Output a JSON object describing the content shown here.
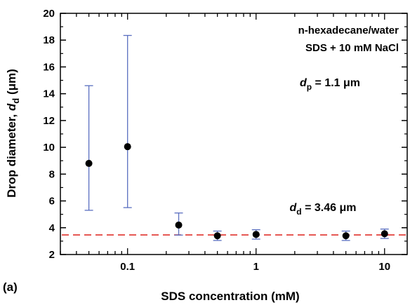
{
  "chart_data": {
    "type": "scatter",
    "panel_label": "(a)",
    "xlabel": "SDS concentration (mM)",
    "ylabel_parts": {
      "main": "Drop diameter, ",
      "var": "d",
      "sub": "d",
      "unit": " (μm)"
    },
    "x_scale": "log",
    "xlim": [
      0.03,
      15
    ],
    "ylim": [
      2,
      20
    ],
    "x_ticks": [
      0.1,
      1,
      10
    ],
    "x_tick_labels": [
      "0.1",
      "1",
      "10"
    ],
    "y_ticks": [
      2,
      4,
      6,
      8,
      10,
      12,
      14,
      16,
      18,
      20
    ],
    "y_tick_labels": [
      "2",
      "4",
      "6",
      "8",
      "10",
      "12",
      "14",
      "16",
      "18",
      "20"
    ],
    "grid": false,
    "points": [
      {
        "x": 0.05,
        "y": 8.8,
        "y_low": 5.3,
        "y_high": 14.6
      },
      {
        "x": 0.1,
        "y": 10.05,
        "y_low": 5.5,
        "y_high": 18.35
      },
      {
        "x": 0.25,
        "y": 4.2,
        "y_low": 3.45,
        "y_high": 5.1
      },
      {
        "x": 0.5,
        "y": 3.4,
        "y_low": 3.05,
        "y_high": 3.75
      },
      {
        "x": 1,
        "y": 3.5,
        "y_low": 3.15,
        "y_high": 3.85
      },
      {
        "x": 5,
        "y": 3.4,
        "y_low": 3.05,
        "y_high": 3.75
      },
      {
        "x": 10,
        "y": 3.55,
        "y_low": 3.2,
        "y_high": 3.9
      }
    ],
    "reference_line": {
      "y": 3.46,
      "style": "dashed",
      "color": "#e0322d"
    },
    "annotations": {
      "system_line1": "n-hexadecane/water",
      "system_line2": "SDS + 10 mM NaCl",
      "dp": {
        "var": "d",
        "sub": "p",
        "rest": " = 1.1 μm"
      },
      "dd": {
        "var": "d",
        "sub": "d",
        "rest": " = 3.46 μm"
      }
    },
    "colors": {
      "marker": "#000000",
      "errorbar": "#5a6fc0",
      "axis": "#000000"
    }
  }
}
